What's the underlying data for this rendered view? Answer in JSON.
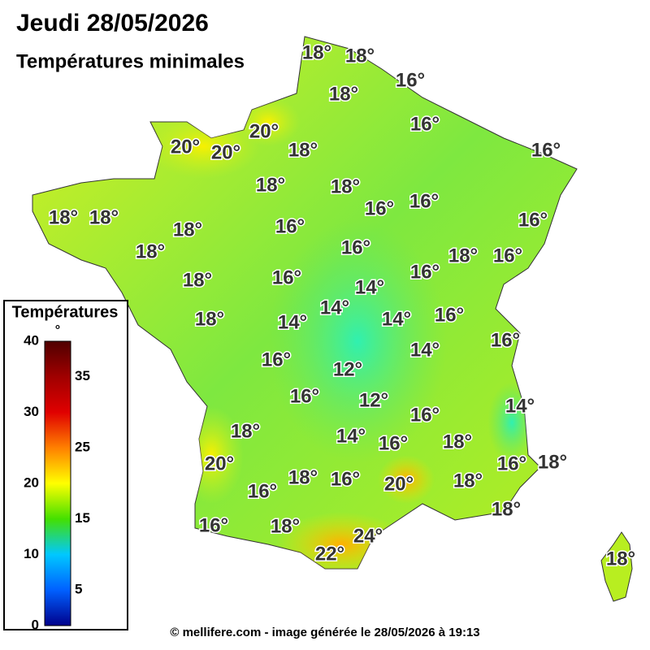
{
  "header": {
    "title": "Jeudi 28/05/2026",
    "subtitle": "Températures minimales"
  },
  "map": {
    "labels": [
      "18°",
      "18°",
      "16°",
      "18°",
      "16°",
      "20°",
      "20°",
      "20°",
      "18°",
      "16°",
      "18°",
      "18°",
      "16°",
      "16°",
      "18°",
      "18°",
      "16°",
      "18°",
      "16°",
      "18°",
      "16°",
      "18°",
      "16°",
      "16°",
      "18°",
      "16°",
      "14°",
      "14°",
      "14°",
      "16°",
      "18°",
      "14°",
      "16°",
      "14°",
      "16°",
      "12°",
      "12°",
      "16°",
      "14°",
      "16°",
      "18°",
      "14°",
      "16°",
      "18°",
      "20°",
      "16°",
      "18°",
      "18°",
      "16°",
      "20°",
      "18°",
      "16°",
      "18°",
      "16°",
      "18°",
      "24°",
      "22°",
      "18°"
    ]
  },
  "legend": {
    "title": "Températures",
    "unit": "°",
    "left_ticks": [
      40,
      30,
      20,
      10,
      0
    ],
    "right_ticks": [
      35,
      25,
      15,
      5
    ]
  },
  "footer": "© mellifere.com - image générée le 28/05/2026 à 19:13"
}
